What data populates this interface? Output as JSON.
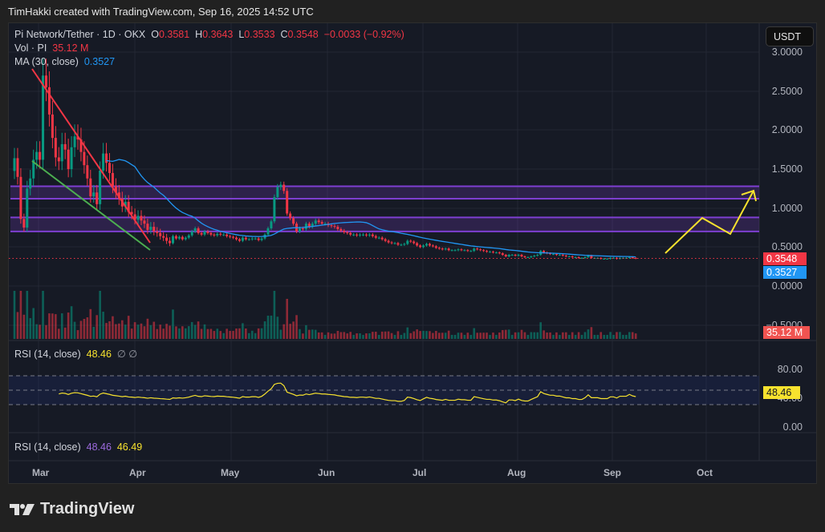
{
  "attribution": "TimHakki created with TradingView.com, Sep 16, 2025 14:52 UTC",
  "symbol": {
    "name": "Pi Network/Tether · 1D · OKX",
    "open_label": "O",
    "open": "0.3581",
    "high_label": "H",
    "high": "0.3643",
    "low_label": "L",
    "low": "0.3533",
    "close_label": "C",
    "close": "0.3548",
    "change": "−0.0033 (−0.92%)"
  },
  "volume_legend": {
    "label": "Vol · PI",
    "value": "35.12 M"
  },
  "ma_legend": {
    "label": "MA (30, close)",
    "value": "0.3527"
  },
  "unit_button": "USDT",
  "price_axis": [
    "3.0000",
    "2.5000",
    "2.0000",
    "1.5000",
    "1.0000",
    "0.5000",
    "0.0000",
    "−0.5000"
  ],
  "price_tags": {
    "last": "0.3548",
    "ma": "0.3527",
    "volume": "35.12 M"
  },
  "rsi_pane": {
    "label": "RSI (14, close)",
    "value": "48.46",
    "extra": "∅  ∅",
    "axis": [
      "80.00",
      "40.00",
      "0.00"
    ],
    "tag": "48.46"
  },
  "rsi_pane2": {
    "label": "RSI (14, close)",
    "value1": "48.46",
    "value2": "46.49"
  },
  "time_axis": [
    "Mar",
    "Apr",
    "May",
    "Jun",
    "Jul",
    "Aug",
    "Sep",
    "Oct"
  ],
  "brand": "TradingView",
  "colors": {
    "up": "#089981",
    "down": "#f23645",
    "ma": "#2196f3",
    "rsi": "#f7e22e",
    "zone": "#7e3fd1",
    "projection": "#f7e22e",
    "wedge_top": "#f23645",
    "wedge_bottom": "#4caf50"
  },
  "chart_data": {
    "type": "candlestick",
    "title": "Pi Network/Tether · 1D · OKX",
    "ylabel": "USDT",
    "ylim": [
      -0.5,
      3.0
    ],
    "x_ticks": [
      "Mar",
      "Apr",
      "May",
      "Jun",
      "Jul",
      "Aug",
      "Sep",
      "Oct"
    ],
    "ohlc_last": {
      "open": 0.3581,
      "high": 0.3643,
      "low": 0.3533,
      "close": 0.3548,
      "change": -0.0033,
      "change_pct": -0.92
    },
    "ma30_last": 0.3527,
    "volume_last_M": 35.12,
    "support_resistance_zones": [
      [
        1.12,
        1.28
      ],
      [
        0.7,
        0.88
      ]
    ],
    "approx_close_by_month": {
      "Feb-end": 1.6,
      "Mar-start": 2.7,
      "Apr-start": 0.6,
      "May-start": 0.63,
      "May-mid": 1.2,
      "Jun-start": 0.68,
      "Jul-start": 0.52,
      "Aug-start": 0.4,
      "Sep-start": 0.36,
      "Sep-16": 0.3548
    },
    "closes": [
      1.64,
      1.4,
      0.86,
      0.75,
      1.25,
      1.38,
      1.62,
      1.72,
      1.62,
      2.7,
      2.55,
      2.2,
      1.9,
      1.65,
      1.6,
      1.82,
      1.75,
      1.5,
      1.78,
      1.92,
      1.88,
      1.72,
      1.55,
      1.38,
      1.15,
      1.2,
      1.05,
      1.48,
      1.7,
      1.58,
      1.45,
      1.28,
      1.2,
      1.12,
      1.02,
      1.08,
      0.95,
      0.92,
      0.85,
      0.9,
      0.84,
      0.8,
      0.72,
      0.76,
      0.7,
      0.68,
      0.64,
      0.62,
      0.58,
      0.55,
      0.64,
      0.61,
      0.63,
      0.6,
      0.62,
      0.65,
      0.7,
      0.74,
      0.68,
      0.66,
      0.7,
      0.68,
      0.66,
      0.65,
      0.67,
      0.66,
      0.66,
      0.64,
      0.63,
      0.62,
      0.6,
      0.58,
      0.62,
      0.6,
      0.6,
      0.61,
      0.61,
      0.59,
      0.61,
      0.66,
      0.74,
      0.83,
      1.14,
      1.27,
      1.3,
      1.22,
      0.93,
      0.87,
      0.8,
      0.7,
      0.74,
      0.73,
      0.8,
      0.76,
      0.8,
      0.84,
      0.82,
      0.8,
      0.8,
      0.78,
      0.77,
      0.76,
      0.73,
      0.71,
      0.69,
      0.68,
      0.66,
      0.66,
      0.65,
      0.66,
      0.66,
      0.65,
      0.66,
      0.64,
      0.62,
      0.62,
      0.6,
      0.58,
      0.56,
      0.55,
      0.55,
      0.53,
      0.53,
      0.54,
      0.58,
      0.57,
      0.55,
      0.52,
      0.5,
      0.52,
      0.54,
      0.52,
      0.51,
      0.49,
      0.48,
      0.47,
      0.48,
      0.46,
      0.46,
      0.46,
      0.47,
      0.46,
      0.46,
      0.45,
      0.45,
      0.48,
      0.47,
      0.46,
      0.45,
      0.44,
      0.44,
      0.43,
      0.43,
      0.42,
      0.4,
      0.38,
      0.4,
      0.4,
      0.39,
      0.4,
      0.38,
      0.37,
      0.37,
      0.38,
      0.39,
      0.4,
      0.45,
      0.43,
      0.42,
      0.41,
      0.41,
      0.4,
      0.4,
      0.39,
      0.38,
      0.38,
      0.37,
      0.37,
      0.36,
      0.36,
      0.37,
      0.39,
      0.36,
      0.36,
      0.36,
      0.35,
      0.35,
      0.35,
      0.36,
      0.36,
      0.35,
      0.36,
      0.36,
      0.36,
      0.37,
      0.36,
      0.3548
    ],
    "rsi": {
      "length": 14,
      "last": 48.46,
      "secondary": 46.49,
      "bands": [
        70,
        50,
        30
      ],
      "ylim": [
        0,
        100
      ]
    }
  }
}
